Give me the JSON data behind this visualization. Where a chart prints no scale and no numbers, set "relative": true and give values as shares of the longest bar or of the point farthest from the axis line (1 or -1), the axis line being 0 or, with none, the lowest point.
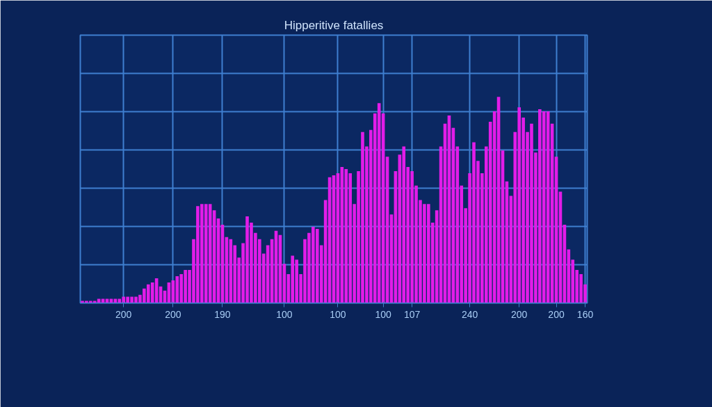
{
  "chart_data": {
    "type": "bar",
    "title": "Hipperitive fatallies",
    "relative": true,
    "color": "#e21ce8",
    "grid": true,
    "categories": [
      null,
      null,
      null,
      null,
      null,
      null,
      null,
      null,
      null,
      null,
      "200",
      null,
      null,
      null,
      null,
      null,
      null,
      null,
      null,
      null,
      null,
      null,
      "200",
      null,
      null,
      null,
      null,
      null,
      null,
      null,
      null,
      null,
      null,
      null,
      "190",
      null,
      null,
      null,
      null,
      null,
      null,
      null,
      null,
      null,
      null,
      null,
      null,
      null,
      null,
      "100",
      null,
      null,
      null,
      null,
      null,
      null,
      null,
      null,
      null,
      null,
      null,
      null,
      "100",
      null,
      null,
      null,
      null,
      null,
      null,
      null,
      null,
      null,
      null,
      "100",
      null,
      null,
      null,
      null,
      null,
      null,
      "107",
      null,
      null,
      null,
      null,
      null,
      null,
      null,
      null,
      null,
      null,
      null,
      null,
      null,
      "240",
      null,
      null,
      null,
      null,
      null,
      null,
      null,
      null,
      null,
      null,
      null,
      "200",
      null,
      null,
      null,
      null,
      null,
      null,
      null,
      null,
      "200",
      null,
      null,
      null,
      null,
      null,
      null,
      "160"
    ],
    "values": [
      0.01,
      0.01,
      0.01,
      0.01,
      0.02,
      0.02,
      0.02,
      0.02,
      0.02,
      0.02,
      0.03,
      0.03,
      0.03,
      0.03,
      0.04,
      0.07,
      0.09,
      0.1,
      0.12,
      0.08,
      0.06,
      0.1,
      0.11,
      0.13,
      0.14,
      0.16,
      0.16,
      0.31,
      0.47,
      0.48,
      0.48,
      0.48,
      0.45,
      0.41,
      0.38,
      0.32,
      0.31,
      0.28,
      0.22,
      0.29,
      0.42,
      0.39,
      0.34,
      0.31,
      0.24,
      0.28,
      0.31,
      0.35,
      0.33,
      0.19,
      0.14,
      0.23,
      0.21,
      0.14,
      0.31,
      0.34,
      0.37,
      0.36,
      0.28,
      0.5,
      0.61,
      0.62,
      0.63,
      0.66,
      0.65,
      0.63,
      0.48,
      0.64,
      0.83,
      0.76,
      0.84,
      0.92,
      0.97,
      0.92,
      0.71,
      0.43,
      0.64,
      0.72,
      0.76,
      0.66,
      0.64,
      0.57,
      0.5,
      0.48,
      0.48,
      0.39,
      0.45,
      0.76,
      0.87,
      0.91,
      0.85,
      0.76,
      0.57,
      0.46,
      0.63,
      0.78,
      0.69,
      0.63,
      0.76,
      0.88,
      0.93,
      1.0,
      0.74,
      0.59,
      0.52,
      0.83,
      0.95,
      0.9,
      0.83,
      0.87,
      0.73,
      0.94,
      0.93,
      0.93,
      0.87,
      0.71,
      0.54,
      0.38,
      0.26,
      0.21,
      0.16,
      0.14,
      0.09
    ]
  }
}
